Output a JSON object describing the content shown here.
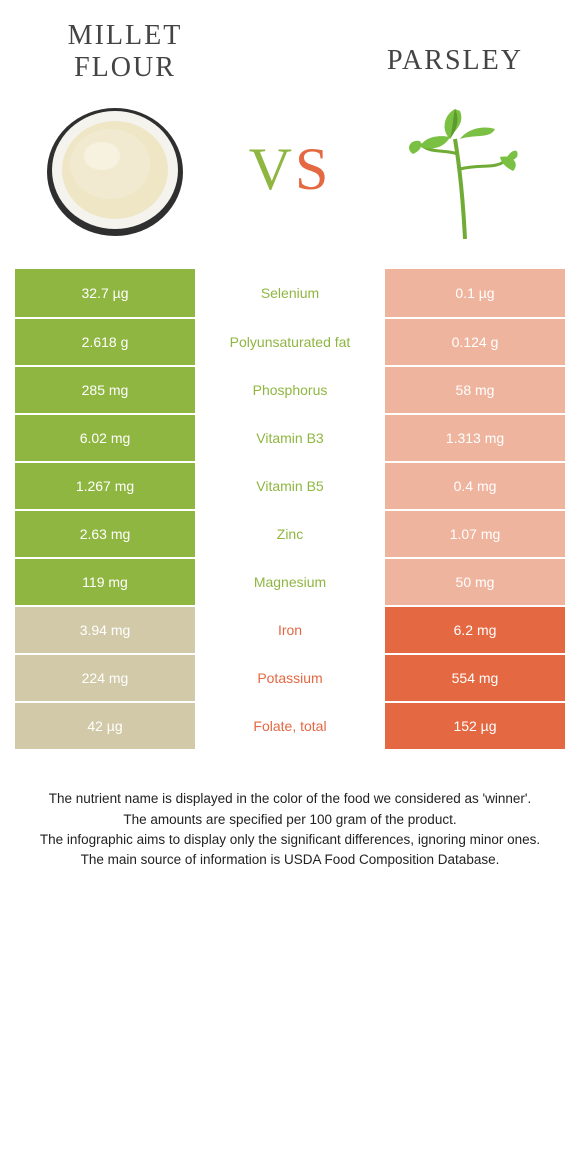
{
  "colors": {
    "left": "#8fb641",
    "right": "#e46842",
    "left_dim": "#d1c9a8",
    "right_dim": "#efb49e"
  },
  "header": {
    "left_title_line1": "MILLET",
    "left_title_line2": "FLOUR",
    "right_title": "PARSLEY",
    "vs_v": "V",
    "vs_s": "S"
  },
  "rows": [
    {
      "nutrient": "Selenium",
      "left": "32.7 µg",
      "right": "0.1 µg",
      "winner": "left"
    },
    {
      "nutrient": "Polyunsaturated fat",
      "left": "2.618 g",
      "right": "0.124 g",
      "winner": "left"
    },
    {
      "nutrient": "Phosphorus",
      "left": "285 mg",
      "right": "58 mg",
      "winner": "left"
    },
    {
      "nutrient": "Vitamin B3",
      "left": "6.02 mg",
      "right": "1.313 mg",
      "winner": "left"
    },
    {
      "nutrient": "Vitamin B5",
      "left": "1.267 mg",
      "right": "0.4 mg",
      "winner": "left"
    },
    {
      "nutrient": "Zinc",
      "left": "2.63 mg",
      "right": "1.07 mg",
      "winner": "left"
    },
    {
      "nutrient": "Magnesium",
      "left": "119 mg",
      "right": "50 mg",
      "winner": "left"
    },
    {
      "nutrient": "Iron",
      "left": "3.94 mg",
      "right": "6.2 mg",
      "winner": "right"
    },
    {
      "nutrient": "Potassium",
      "left": "224 mg",
      "right": "554 mg",
      "winner": "right"
    },
    {
      "nutrient": "Folate, total",
      "left": "42 µg",
      "right": "152 µg",
      "winner": "right"
    }
  ],
  "footer": {
    "line1": "The nutrient name is displayed in the color of the food we considered as 'winner'.",
    "line2": "The amounts are specified per 100 gram of the product.",
    "line3": "The infographic aims to display only the significant differences, ignoring minor ones.",
    "line4": "The main source of information is USDA Food Composition Database."
  }
}
